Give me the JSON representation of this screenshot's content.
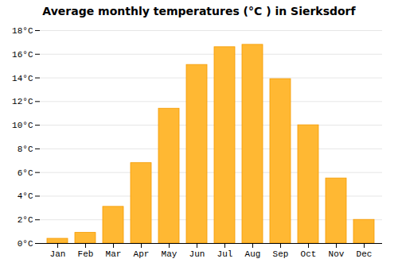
{
  "chart_data": {
    "type": "bar",
    "title": "Average monthly temperatures (°C ) in Sierksdorf",
    "categories": [
      "Jan",
      "Feb",
      "Mar",
      "Apr",
      "May",
      "Jun",
      "Jul",
      "Aug",
      "Sep",
      "Oct",
      "Nov",
      "Dec"
    ],
    "values": [
      0.4,
      0.9,
      3.1,
      6.8,
      11.4,
      15.1,
      16.6,
      16.8,
      13.9,
      10.0,
      5.5,
      2.0
    ],
    "color": "#FFB833",
    "ylim": [
      0,
      18
    ],
    "yticks": [
      {
        "value": 0,
        "label": "0°C"
      },
      {
        "value": 2,
        "label": "2°C"
      },
      {
        "value": 4,
        "label": "4°C"
      },
      {
        "value": 6,
        "label": "6°C"
      },
      {
        "value": 8,
        "label": "8°C"
      },
      {
        "value": 10,
        "label": "10°C"
      },
      {
        "value": 12,
        "label": "12°C"
      },
      {
        "value": 14,
        "label": "14°C"
      },
      {
        "value": 16,
        "label": "16°C"
      },
      {
        "value": 18,
        "label": "18°C"
      }
    ],
    "grid": true
  }
}
